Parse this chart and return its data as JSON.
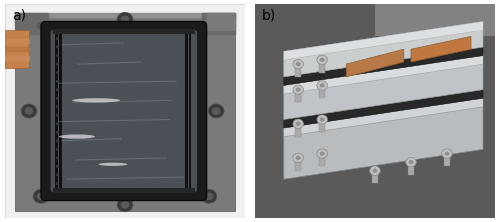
{
  "figure_width": 5.0,
  "figure_height": 2.22,
  "dpi": 100,
  "background_color": "#ffffff",
  "label_a": "a)",
  "label_b": "b)",
  "label_fontsize": 10,
  "label_color": "#000000",
  "label_fontweight": "normal",
  "border_color": "#cccccc",
  "photo_a_bg": "#8a8a8a",
  "photo_a_plate": "#6e6e6e",
  "photo_a_channel_bg": "#3a3a3a",
  "photo_a_gel": "#5a6065",
  "photo_a_copper": "#c4824a",
  "photo_b_bg": "#606060",
  "photo_b_plate": "#c0c4c8",
  "photo_b_copper": "#b87848",
  "photo_b_black": "#282828"
}
